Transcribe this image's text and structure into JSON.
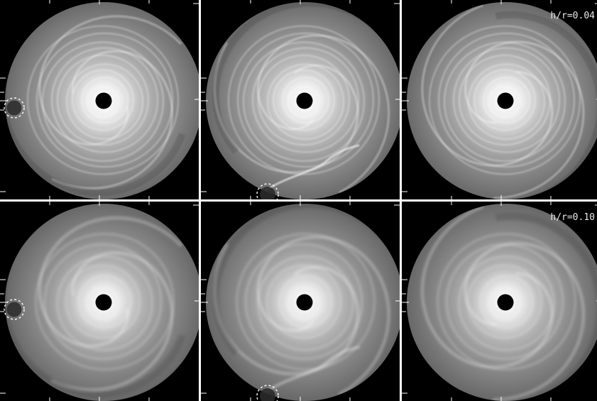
{
  "figure": {
    "layout": "2x3 grid of grayscale disk simulation snapshots",
    "rows": [
      {
        "label": "h/r=0.04",
        "panels": [
          {
            "marker": "left"
          },
          {
            "marker": "bottom"
          },
          {
            "marker": "none"
          }
        ]
      },
      {
        "label": "h/r=0.10",
        "panels": [
          {
            "marker": "left"
          },
          {
            "marker": "bottom"
          },
          {
            "marker": "none"
          }
        ]
      }
    ]
  }
}
